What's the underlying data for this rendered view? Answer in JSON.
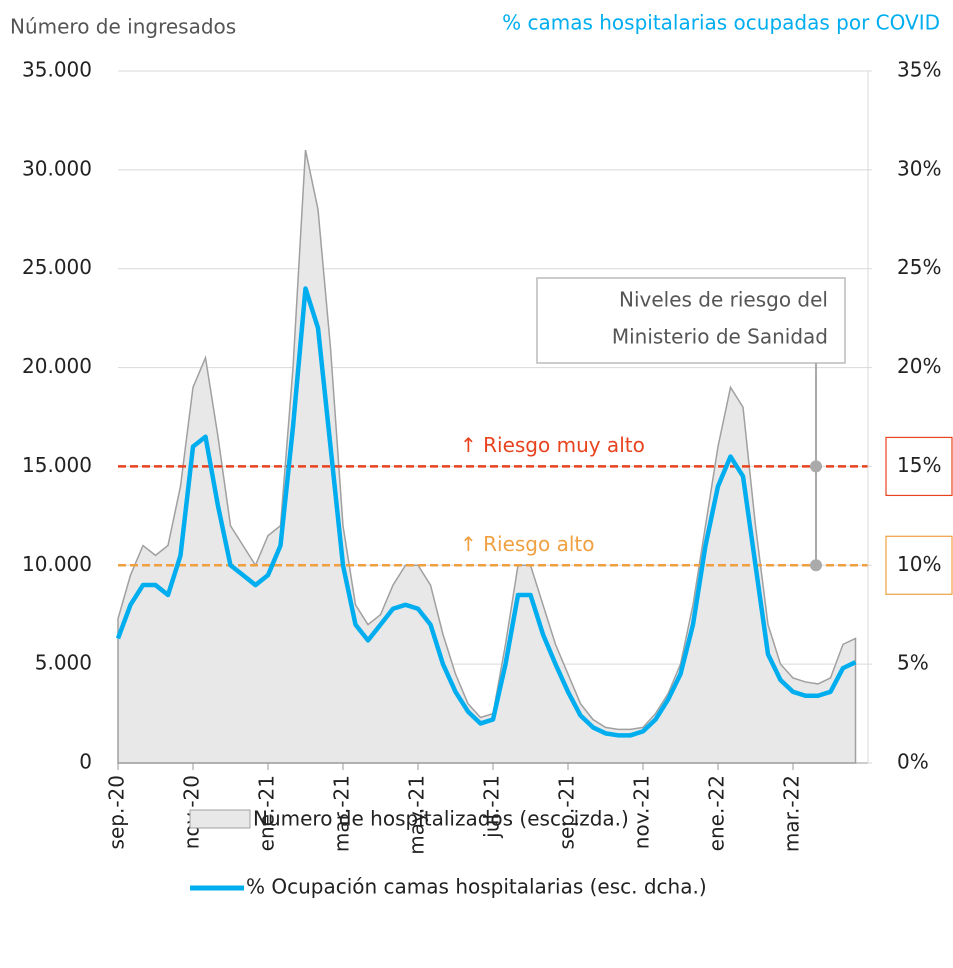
{
  "chart_data": {
    "type": "area-line",
    "y_label": "Número de ingresados",
    "y2_label": "% camas hospitalarias ocupadas por COVID",
    "categories": [
      "sep.-20",
      null,
      null,
      null,
      null,
      null,
      "nov.-20",
      null,
      null,
      null,
      null,
      null,
      "ene.-21",
      null,
      null,
      null,
      null,
      null,
      "mar.-21",
      null,
      null,
      null,
      null,
      null,
      "may.-21",
      null,
      null,
      null,
      null,
      null,
      "jul.-21",
      null,
      null,
      null,
      null,
      null,
      "sep.-21",
      null,
      null,
      null,
      null,
      null,
      "nov.-21",
      null,
      null,
      null,
      null,
      null,
      "ene.-22",
      null,
      null,
      null,
      null,
      null,
      "mar.-22",
      null,
      null,
      null,
      null,
      null
    ],
    "series": [
      {
        "name": "Numero de hospitalizados (esc. izda.)",
        "color": "#e8e8e8",
        "stroke": "#a0a0a0",
        "values": [
          7300,
          9500,
          11000,
          10500,
          11000,
          14000,
          19000,
          20500,
          16500,
          12000,
          11000,
          10000,
          11500,
          12000,
          20000,
          31000,
          28000,
          21000,
          12000,
          8000,
          7000,
          7500,
          9000,
          10000,
          10000,
          9000,
          6500,
          4500,
          3000,
          2300,
          2500,
          6000,
          10000,
          10000,
          8000,
          6000,
          4500,
          3000,
          2200,
          1800,
          1700,
          1700,
          1800,
          2500,
          3500,
          5000,
          8000,
          12000,
          16000,
          19000,
          18000,
          12000,
          7000,
          5000,
          4300,
          4100,
          4000,
          4300,
          6000,
          6300
        ]
      },
      {
        "name": "% Ocupación camas hospitalarias (esc. dcha.)",
        "color": "#00aeef",
        "axis": "y2",
        "values": [
          6.3,
          8,
          9,
          9,
          8.5,
          10.5,
          16,
          16.5,
          13,
          10,
          9.5,
          9,
          9.5,
          11,
          17,
          24,
          22,
          16,
          10,
          7,
          6.2,
          7,
          7.8,
          8,
          7.8,
          7,
          5,
          3.6,
          2.6,
          2,
          2.2,
          5,
          8.5,
          8.5,
          6.5,
          5,
          3.6,
          2.4,
          1.8,
          1.5,
          1.4,
          1.4,
          1.6,
          2.2,
          3.2,
          4.5,
          7,
          11,
          14,
          15.5,
          14.5,
          10,
          5.5,
          4.2,
          3.6,
          3.4,
          3.4,
          3.6,
          4.8,
          5.1
        ]
      }
    ],
    "ylim": [
      0,
      35000
    ],
    "yticks": [
      0,
      {
        "value": 5000,
        "label": "5.000"
      },
      {
        "value": 10000,
        "label": "10.000"
      },
      {
        "value": 15000,
        "label": "15.000"
      },
      {
        "value": 20000,
        "label": "20.000"
      },
      {
        "value": 25000,
        "label": "25.000"
      },
      {
        "value": 30000,
        "label": "30.000"
      },
      {
        "value": 35000,
        "label": "35.000"
      }
    ],
    "y2lim": [
      0,
      35
    ],
    "y2ticks": [
      {
        "value": 0,
        "label": "0%"
      },
      {
        "value": 5,
        "label": "5%"
      },
      {
        "value": 10,
        "label": "10%"
      },
      {
        "value": 15,
        "label": "15%"
      },
      {
        "value": 20,
        "label": "20%"
      },
      {
        "value": 25,
        "label": "25%"
      },
      {
        "value": 30,
        "label": "30%"
      },
      {
        "value": 35,
        "label": "35%"
      }
    ],
    "grid": true,
    "reference_lines": [
      {
        "value": 15,
        "label": "↑ Riesgo muy alto",
        "color": "#e8431f"
      },
      {
        "value": 10,
        "label": "↑ Riesgo alto",
        "color": "#f0a040"
      }
    ],
    "annotation": [
      "Niveles de riesgo del",
      "Ministerio de Sanidad"
    ]
  }
}
